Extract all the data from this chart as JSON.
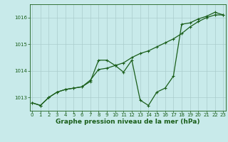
{
  "title": "Graphe pression niveau de la mer (hPa)",
  "background_color": "#c8eaea",
  "grid_color": "#aacccc",
  "line_color": "#1a5e1a",
  "x_hours": [
    0,
    1,
    2,
    3,
    4,
    5,
    6,
    7,
    8,
    9,
    10,
    11,
    12,
    13,
    14,
    15,
    16,
    17,
    18,
    19,
    20,
    21,
    22,
    23
  ],
  "line1_y": [
    1012.8,
    1012.7,
    1013.0,
    1013.2,
    1013.3,
    1013.35,
    1013.4,
    1013.6,
    1014.4,
    1014.4,
    1014.2,
    1013.95,
    1014.4,
    1012.9,
    1012.7,
    1013.2,
    1013.35,
    1013.8,
    1015.75,
    1015.8,
    1015.95,
    1016.05,
    1016.2,
    1016.1
  ],
  "line2_y": [
    1012.8,
    1012.7,
    1013.0,
    1013.2,
    1013.3,
    1013.35,
    1013.4,
    1013.65,
    1014.05,
    1014.1,
    1014.2,
    1014.3,
    1014.5,
    1014.65,
    1014.75,
    1014.9,
    1015.05,
    1015.2,
    1015.4,
    1015.65,
    1015.85,
    1016.0,
    1016.1,
    1016.1
  ],
  "ylim": [
    1012.5,
    1016.5
  ],
  "yticks": [
    1013,
    1014,
    1015,
    1016
  ],
  "xlim": [
    -0.3,
    23.3
  ],
  "xticks": [
    0,
    1,
    2,
    3,
    4,
    5,
    6,
    7,
    8,
    9,
    10,
    11,
    12,
    13,
    14,
    15,
    16,
    17,
    18,
    19,
    20,
    21,
    22,
    23
  ],
  "tick_fontsize": 5.0,
  "xlabel_fontsize": 6.5,
  "marker_size": 3,
  "linewidth": 0.9
}
